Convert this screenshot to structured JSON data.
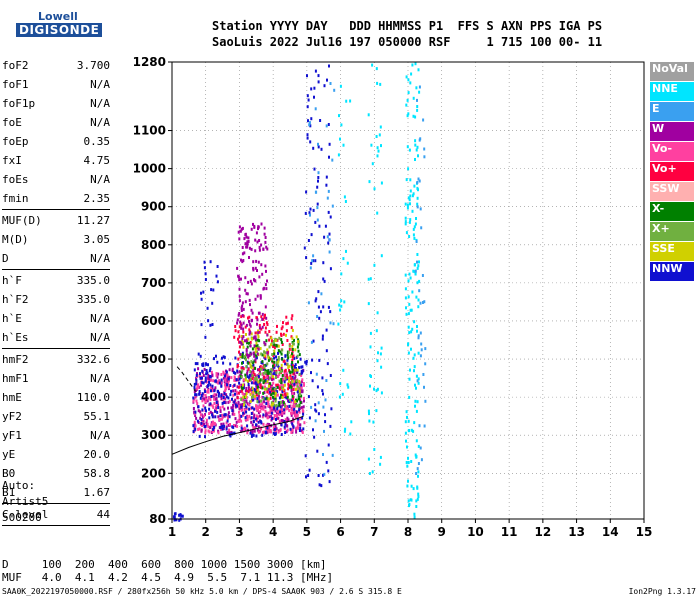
{
  "logo": {
    "top": "Lowell",
    "main": "DIGISONDE"
  },
  "header": {
    "line1": "Station YYYY DAY   DDD HHMMSS P1  FFS S AXN PPS IGA PS",
    "line2": "SaoLuis 2022 Jul16 197 050000 RSF     1 715 100 00- 11"
  },
  "params": [
    {
      "label": "foF2",
      "value": "3.700"
    },
    {
      "label": "foF1",
      "value": "N/A"
    },
    {
      "label": "foF1p",
      "value": "N/A"
    },
    {
      "label": "foE",
      "value": "N/A"
    },
    {
      "label": "foEp",
      "value": "0.35"
    },
    {
      "label": "fxI",
      "value": "4.75"
    },
    {
      "label": "foEs",
      "value": "N/A"
    },
    {
      "label": "fmin",
      "value": "2.35"
    },
    {
      "sep": true
    },
    {
      "label": "MUF(D)",
      "value": "11.27"
    },
    {
      "label": "M(D)",
      "value": "3.05"
    },
    {
      "label": "D",
      "value": "N/A"
    },
    {
      "sep": true
    },
    {
      "label": "h`F",
      "value": "335.0"
    },
    {
      "label": "h`F2",
      "value": "335.0"
    },
    {
      "label": "h`E",
      "value": "N/A"
    },
    {
      "label": "h`Es",
      "value": "N/A"
    },
    {
      "sep": true
    },
    {
      "label": "hmF2",
      "value": "332.6"
    },
    {
      "label": "hmF1",
      "value": "N/A"
    },
    {
      "label": "hmE",
      "value": "110.0"
    },
    {
      "label": "yF2",
      "value": "55.1"
    },
    {
      "label": "yF1",
      "value": "N/A"
    },
    {
      "label": "yE",
      "value": "20.0"
    },
    {
      "label": "B0",
      "value": "58.8"
    },
    {
      "label": "B1",
      "value": "1.67"
    },
    {
      "sep": true
    },
    {
      "label": "C-level",
      "value": "44"
    },
    {
      "sep": true
    }
  ],
  "info": {
    "line1": "Auto:",
    "line2": "Artist5",
    "line3": "500200"
  },
  "legend": [
    {
      "label": "NoVal",
      "color": "#a0a0a0"
    },
    {
      "label": "NNE",
      "color": "#00e5ff"
    },
    {
      "label": "E",
      "color": "#3aa0f0"
    },
    {
      "label": "W",
      "color": "#a000a0"
    },
    {
      "label": "Vo-",
      "color": "#ff40a0"
    },
    {
      "label": "Vo+",
      "color": "#ff0040"
    },
    {
      "label": "SSW",
      "color": "#ffb0b0"
    },
    {
      "label": "X-",
      "color": "#008000"
    },
    {
      "label": "X+",
      "color": "#70b040"
    },
    {
      "label": "SSE",
      "color": "#d0d000"
    },
    {
      "label": "NNW",
      "color": "#1010d0"
    }
  ],
  "bottom": {
    "d_row": "D     100  200  400  600  800 1000 1500 3000 [km]",
    "muf_row": "MUF   4.0  4.1  4.2  4.5  4.9  5.5  7.1 11.3 [MHz]"
  },
  "footer": {
    "left": "SAA0K_2022197050000.RSF / 280fx256h 50 kHz 5.0 km / DPS-4 SAA0K 903 / 2.6 S 315.8 E",
    "right": "Ion2Png 1.3.17"
  },
  "chart_data": {
    "type": "scatter",
    "xlabel": "",
    "ylabel": "",
    "xlim": [
      1,
      15
    ],
    "ylim": [
      80,
      1280
    ],
    "x_ticks": [
      1,
      2,
      3,
      4,
      5,
      6,
      7,
      8,
      9,
      10,
      11,
      12,
      13,
      14,
      15
    ],
    "y_ticks": [
      80,
      200,
      300,
      400,
      500,
      600,
      700,
      800,
      900,
      1000,
      1100,
      1280
    ],
    "grid": true,
    "profile_curve": {
      "x": [
        1.0,
        1.5,
        2.0,
        2.5,
        3.0,
        3.5,
        4.0,
        4.5,
        4.9
      ],
      "y": [
        250,
        268,
        283,
        297,
        307,
        317,
        327,
        337,
        350
      ]
    },
    "dashed_trace": {
      "x": [
        1.15,
        1.3,
        1.5,
        1.7
      ],
      "y": [
        480,
        465,
        440,
        415
      ]
    },
    "echo_clusters": [
      {
        "name": "W",
        "x_range": [
          1.6,
          4.9
        ],
        "y_range": [
          310,
          480
        ],
        "count": 420
      },
      {
        "name": "Vo-",
        "x_range": [
          1.6,
          4.9
        ],
        "y_range": [
          310,
          470
        ],
        "count": 380
      },
      {
        "name": "NNW",
        "x_range": [
          1.6,
          4.9
        ],
        "y_range": [
          300,
          520
        ],
        "count": 320
      },
      {
        "name": "Vo+",
        "x_range": [
          2.8,
          4.6
        ],
        "y_range": [
          400,
          620
        ],
        "count": 160
      },
      {
        "name": "X-",
        "x_range": [
          3.0,
          4.8
        ],
        "y_range": [
          380,
          560
        ],
        "count": 120
      },
      {
        "name": "X+",
        "x_range": [
          3.0,
          4.8
        ],
        "y_range": [
          380,
          560
        ],
        "count": 90
      },
      {
        "name": "SSE",
        "x_range": [
          3.0,
          4.8
        ],
        "y_range": [
          380,
          580
        ],
        "count": 80
      },
      {
        "name": "W",
        "x_range": [
          2.9,
          3.8
        ],
        "y_range": [
          500,
          860
        ],
        "count": 160
      },
      {
        "name": "NNW",
        "x_range": [
          1.8,
          2.4
        ],
        "y_range": [
          560,
          760
        ],
        "count": 20
      },
      {
        "name": "NNW",
        "x_range": [
          4.9,
          5.7
        ],
        "y_range": [
          140,
          1280
        ],
        "count": 110
      },
      {
        "name": "E",
        "x_range": [
          5.0,
          5.8
        ],
        "y_range": [
          200,
          1280
        ],
        "count": 40
      },
      {
        "name": "NNE",
        "x_range": [
          5.9,
          6.3
        ],
        "y_range": [
          200,
          1280
        ],
        "count": 30
      },
      {
        "name": "NNE",
        "x_range": [
          6.8,
          7.2
        ],
        "y_range": [
          200,
          1280
        ],
        "count": 50
      },
      {
        "name": "NNE",
        "x_range": [
          7.9,
          8.3
        ],
        "y_range": [
          80,
          1280
        ],
        "count": 160
      },
      {
        "name": "E",
        "x_range": [
          8.2,
          8.5
        ],
        "y_range": [
          200,
          1280
        ],
        "count": 40
      },
      {
        "name": "NNW",
        "x_range": [
          1.0,
          1.3
        ],
        "y_range": [
          80,
          100
        ],
        "count": 12
      }
    ]
  }
}
